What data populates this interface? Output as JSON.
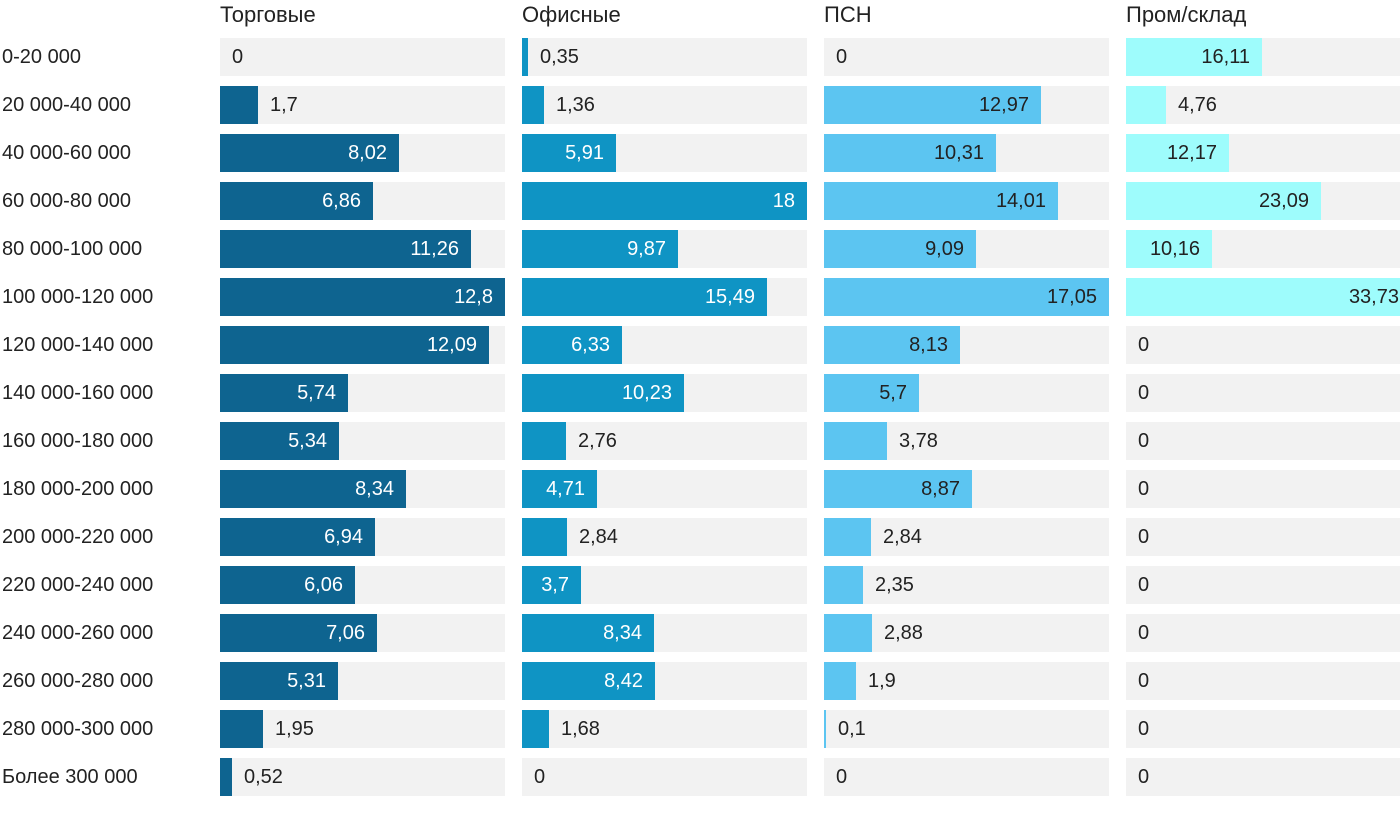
{
  "chart_data": {
    "type": "bar",
    "orientation": "horizontal",
    "layout": "small-multiples-4-columns",
    "title": "",
    "xlabel": "",
    "ylabel": "",
    "grid": false,
    "legend_position": "column-headers",
    "value_decimal_separator": ",",
    "background_color": "#ffffff",
    "track_color": "#f2f2f2",
    "text_color": "#222222",
    "categories": [
      "0-20 000",
      "20 000-40 000",
      "40 000-60 000",
      "60 000-80 000",
      "80 000-100 000",
      "100 000-120 000",
      "120 000-140 000",
      "140 000-160 000",
      "160 000-180 000",
      "180 000-200 000",
      "200 000-220 000",
      "220 000-240 000",
      "240 000-260 000",
      "260 000-280 000",
      "280 000-300 000",
      "Более 300 000"
    ],
    "series": [
      {
        "name": "Торговые",
        "color": "#0e6490",
        "inside_label_color": "#ffffff",
        "outside_label_color": "#222222",
        "axis_max": 12.8,
        "values": [
          0,
          1.7,
          8.02,
          6.86,
          11.26,
          12.8,
          12.09,
          5.74,
          5.34,
          8.34,
          6.94,
          6.06,
          7.06,
          5.31,
          1.95,
          0.52
        ],
        "display_values": [
          "0",
          "1,7",
          "8,02",
          "6,86",
          "11,26",
          "12,8",
          "12,09",
          "5,74",
          "5,34",
          "8,34",
          "6,94",
          "6,06",
          "7,06",
          "5,31",
          "1,95",
          "0,52"
        ]
      },
      {
        "name": "Офисные",
        "color": "#0f94c4",
        "inside_label_color": "#ffffff",
        "outside_label_color": "#222222",
        "axis_max": 18,
        "values": [
          0.35,
          1.36,
          5.91,
          18,
          9.87,
          15.49,
          6.33,
          10.23,
          2.76,
          4.71,
          2.84,
          3.7,
          8.34,
          8.42,
          1.68,
          0
        ],
        "display_values": [
          "0,35",
          "1,36",
          "5,91",
          "18",
          "9,87",
          "15,49",
          "6,33",
          "10,23",
          "2,76",
          "4,71",
          "2,84",
          "3,7",
          "8,34",
          "8,42",
          "1,68",
          "0"
        ]
      },
      {
        "name": "ПСН",
        "color": "#5cc5f1",
        "inside_label_color": "#222222",
        "outside_label_color": "#222222",
        "axis_max": 17.05,
        "values": [
          0,
          12.97,
          10.31,
          14.01,
          9.09,
          17.05,
          8.13,
          5.7,
          3.78,
          8.87,
          2.84,
          2.35,
          2.88,
          1.9,
          0.1,
          0
        ],
        "display_values": [
          "0",
          "12,97",
          "10,31",
          "14,01",
          "9,09",
          "17,05",
          "8,13",
          "5,7",
          "3,78",
          "8,87",
          "2,84",
          "2,35",
          "2,88",
          "1,9",
          "0,1",
          "0"
        ]
      },
      {
        "name": "Пром/склад",
        "color": "#9efcfc",
        "inside_label_color": "#222222",
        "outside_label_color": "#222222",
        "axis_max": 33.73,
        "values": [
          16.11,
          4.76,
          12.17,
          23.09,
          10.16,
          33.73,
          0,
          0,
          0,
          0,
          0,
          0,
          0,
          0,
          0,
          0
        ],
        "display_values": [
          "16,11",
          "4,76",
          "12,17",
          "23,09",
          "10,16",
          "33,73",
          "0",
          "0",
          "0",
          "0",
          "0",
          "0",
          "0",
          "0",
          "0",
          "0"
        ]
      }
    ]
  }
}
